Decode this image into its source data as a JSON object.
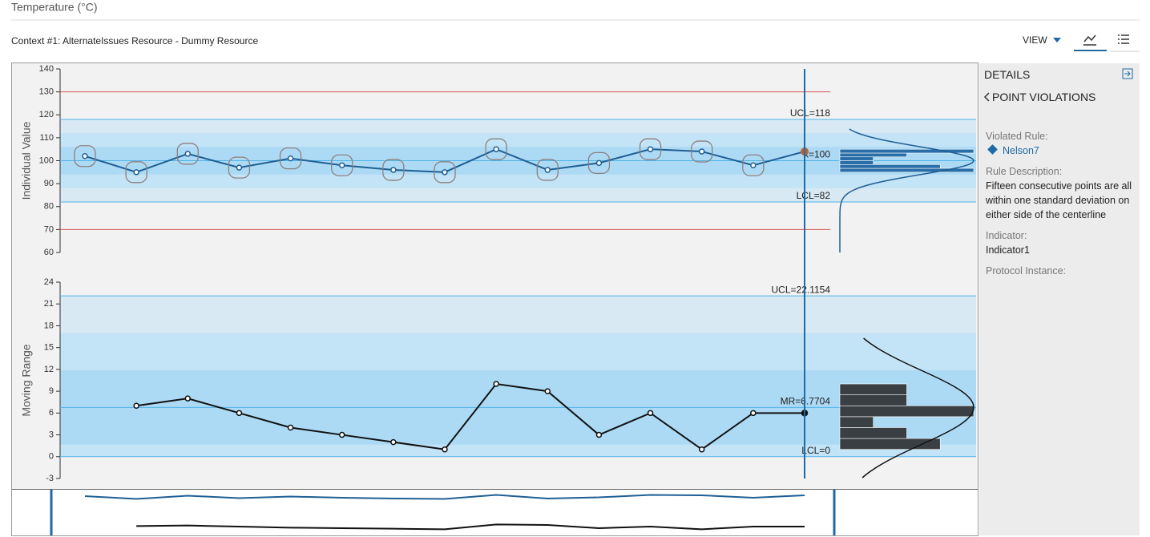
{
  "header": {
    "title": "Temperature (°C)",
    "context": "Context #1: AlternateIssues Resource - Dummy Resource",
    "view": "VIEW"
  },
  "details": {
    "title": "DETAILS",
    "section": "POINT VIOLATIONS",
    "fields": [
      {
        "label": "Violated Rule:",
        "value": "Nelson7"
      },
      {
        "label": "Rule Description:",
        "value": "Fifteen consecutive points are all within one standard deviation on either side of the centerline"
      },
      {
        "label": "Indicator:",
        "value": "Indicator1"
      },
      {
        "label": "Protocol Instance:"
      }
    ]
  },
  "chart_data": [
    {
      "type": "line",
      "ylabel": "Individual Value",
      "categories": [
        null,
        null,
        null,
        null,
        null,
        null,
        null,
        null,
        null,
        null,
        null,
        null,
        null,
        null,
        null
      ],
      "series": [
        {
          "color": "#1f5f94",
          "values": [
            102,
            95,
            103,
            97,
            101,
            98,
            96,
            95,
            105,
            96,
            99,
            105,
            104,
            98,
            104
          ]
        }
      ],
      "ylim": [
        60,
        140
      ],
      "yticks": [
        60,
        70,
        80,
        90,
        100,
        110,
        120,
        130,
        140
      ],
      "control_limits": [
        {
          "value": 118,
          "label": "UCL=118"
        },
        {
          "value": 100,
          "label": "x̄=100"
        },
        {
          "value": 82,
          "label": "LCL=82"
        }
      ],
      "spec_limits": [
        130,
        70
      ],
      "spec_color": "#d9534f",
      "histogram": {
        "bins": [
          95,
          96.67,
          98.33,
          100,
          101.67,
          103.33,
          105
        ],
        "counts": [
          4,
          3,
          1,
          1,
          2,
          4
        ],
        "color": "#2a6ea8"
      }
    },
    {
      "type": "line",
      "ylabel": "Moving Range",
      "categories": [
        null,
        null,
        null,
        null,
        null,
        null,
        null,
        null,
        null,
        null,
        null,
        null,
        null,
        null,
        null
      ],
      "series": [
        {
          "color": "#111111",
          "values": [
            null,
            7,
            8,
            6,
            4,
            3,
            2,
            1,
            10,
            9,
            3,
            6,
            1,
            6,
            6
          ]
        }
      ],
      "ylim": [
        -3,
        24
      ],
      "yticks": [
        -3,
        0,
        3,
        6,
        9,
        12,
        15,
        18,
        21,
        24
      ],
      "control_limits": [
        {
          "value": 22.1154,
          "label": "UCL=22.1154"
        },
        {
          "value": 6.7704,
          "label": "MR=6.7704"
        },
        {
          "value": 0,
          "label": "LCL=0"
        }
      ],
      "histogram": {
        "bins": [
          1,
          2.5,
          4,
          5.5,
          7,
          8.5,
          10
        ],
        "counts": [
          3,
          2,
          1,
          4,
          2,
          2
        ],
        "color": "#3a3f44"
      }
    }
  ]
}
